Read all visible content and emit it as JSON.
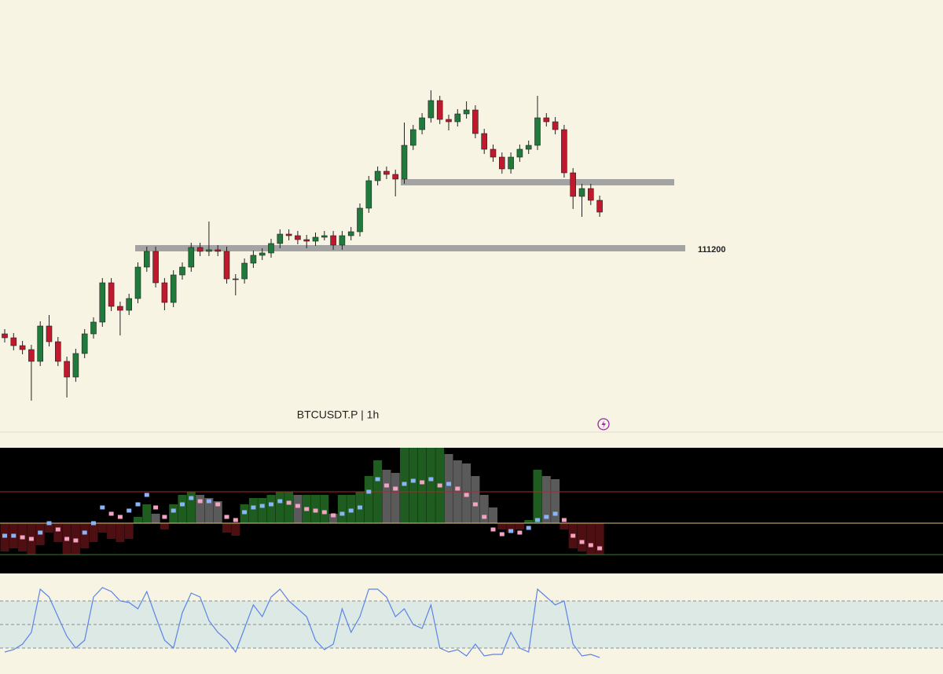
{
  "chart_data": [
    {
      "type": "candlestick",
      "title": "BTCUSDT.P | 1h",
      "ylim": [
        106520,
        117520
      ],
      "up_color": "#1f7a3c",
      "down_color": "#c0182c",
      "levels": [
        {
          "price": 112880,
          "show_label": false
        },
        {
          "price": 111200,
          "show_label": true
        }
      ],
      "level_color": "#a3a3a3",
      "ohlc": [
        [
          109020,
          109140,
          108800,
          108920
        ],
        [
          108920,
          109040,
          108600,
          108720
        ],
        [
          108720,
          108840,
          108500,
          108620
        ],
        [
          108620,
          108740,
          107320,
          108320
        ],
        [
          108320,
          109340,
          108200,
          109220
        ],
        [
          109220,
          109500,
          108700,
          108820
        ],
        [
          108820,
          108940,
          108200,
          108320
        ],
        [
          108320,
          108440,
          107400,
          107920
        ],
        [
          107920,
          108640,
          107800,
          108520
        ],
        [
          108520,
          109140,
          108400,
          109020
        ],
        [
          109020,
          109440,
          108900,
          109320
        ],
        [
          109320,
          110440,
          109200,
          110320
        ],
        [
          110320,
          110440,
          109600,
          109720
        ],
        [
          109720,
          109840,
          108980,
          109620
        ],
        [
          109620,
          110040,
          109500,
          109920
        ],
        [
          109920,
          110840,
          109800,
          110720
        ],
        [
          110720,
          111240,
          110600,
          111120
        ],
        [
          111120,
          111240,
          110200,
          110320
        ],
        [
          110320,
          110440,
          109620,
          109820
        ],
        [
          109820,
          110640,
          109700,
          110520
        ],
        [
          110520,
          110840,
          110400,
          110720
        ],
        [
          110720,
          111340,
          110600,
          111220
        ],
        [
          111220,
          111340,
          111000,
          111120
        ],
        [
          111120,
          111880,
          111000,
          111160
        ],
        [
          111160,
          111280,
          111000,
          111120
        ],
        [
          111120,
          111240,
          110300,
          110420
        ],
        [
          110420,
          110540,
          110000,
          110420
        ],
        [
          110420,
          110940,
          110300,
          110820
        ],
        [
          110820,
          111140,
          110700,
          111020
        ],
        [
          111020,
          111200,
          110900,
          111080
        ],
        [
          111080,
          111440,
          110960,
          111320
        ],
        [
          111320,
          111680,
          111200,
          111560
        ],
        [
          111560,
          111680,
          111400,
          111520
        ],
        [
          111520,
          111640,
          111300,
          111420
        ],
        [
          111420,
          111540,
          111200,
          111380
        ],
        [
          111380,
          111600,
          111260,
          111480
        ],
        [
          111480,
          111640,
          111400,
          111520
        ],
        [
          111520,
          111640,
          111160,
          111280
        ],
        [
          111280,
          111640,
          111160,
          111520
        ],
        [
          111520,
          111740,
          111400,
          111620
        ],
        [
          111620,
          112340,
          111500,
          112220
        ],
        [
          112220,
          113040,
          112100,
          112920
        ],
        [
          112920,
          113280,
          112800,
          113160
        ],
        [
          113160,
          113280,
          112960,
          113080
        ],
        [
          113080,
          113200,
          112520,
          112960
        ],
        [
          112960,
          114400,
          112840,
          113820
        ],
        [
          113820,
          114340,
          113700,
          114220
        ],
        [
          114220,
          114640,
          114100,
          114520
        ],
        [
          114520,
          115220,
          114400,
          114960
        ],
        [
          114960,
          115080,
          114360,
          114480
        ],
        [
          114480,
          114600,
          114200,
          114420
        ],
        [
          114420,
          114740,
          114300,
          114620
        ],
        [
          114620,
          114940,
          114500,
          114720
        ],
        [
          114720,
          114840,
          114000,
          114120
        ],
        [
          114120,
          114240,
          113600,
          113720
        ],
        [
          113720,
          113840,
          113400,
          113520
        ],
        [
          113520,
          113640,
          113100,
          113220
        ],
        [
          113220,
          113640,
          113100,
          113520
        ],
        [
          113520,
          113840,
          113400,
          113720
        ],
        [
          113720,
          113940,
          113600,
          113820
        ],
        [
          113820,
          115080,
          113700,
          114520
        ],
        [
          114520,
          114640,
          114300,
          114420
        ],
        [
          114420,
          114540,
          114100,
          114220
        ],
        [
          114220,
          114340,
          113000,
          113120
        ],
        [
          113120,
          113240,
          112200,
          112520
        ],
        [
          112520,
          112840,
          112000,
          112720
        ],
        [
          112720,
          112840,
          112300,
          112420
        ],
        [
          112420,
          112540,
          112000,
          112120
        ]
      ]
    },
    {
      "type": "histogram",
      "ylim": [
        -1.6,
        2.4
      ],
      "levels": [
        {
          "value": 1,
          "color": "#a52a2a"
        },
        {
          "value": 0,
          "color": "#d9c47c"
        },
        {
          "value": -1,
          "color": "#2e7d32"
        }
      ],
      "rising_color": "#1f5c1f",
      "flat_color": "#5a5a5a",
      "negative_color": "#4d0f12",
      "line_up_color": "#8ab4f8",
      "line_down_color": "#f4a3c4",
      "values": [
        -0.9,
        -0.8,
        -0.9,
        -1.0,
        -0.7,
        -0.3,
        -0.6,
        -1.0,
        -1.0,
        -0.8,
        -0.6,
        -0.3,
        -0.5,
        -0.6,
        -0.5,
        0.2,
        0.6,
        0.3,
        -0.2,
        0.6,
        0.9,
        1.0,
        0.9,
        0.8,
        0.7,
        -0.3,
        -0.4,
        0.6,
        0.8,
        0.8,
        0.9,
        1.0,
        1.0,
        0.9,
        0.9,
        0.9,
        0.9,
        0.3,
        0.9,
        0.9,
        1.0,
        1.5,
        2.0,
        1.7,
        1.6,
        2.4,
        2.4,
        2.4,
        2.4,
        2.4,
        2.2,
        2.0,
        1.9,
        1.5,
        0.9,
        0.5,
        -0.2,
        -0.3,
        -0.2,
        0.1,
        1.7,
        1.5,
        1.4,
        -0.2,
        -0.8,
        -0.9,
        -1.0,
        -1.0
      ],
      "line_values": [
        -0.4,
        -0.4,
        -0.45,
        -0.5,
        -0.3,
        0.0,
        -0.2,
        -0.5,
        -0.55,
        -0.3,
        0.0,
        0.5,
        0.3,
        0.2,
        0.4,
        0.6,
        0.9,
        0.5,
        0.2,
        0.4,
        0.6,
        0.8,
        0.7,
        0.7,
        0.6,
        0.2,
        0.1,
        0.35,
        0.5,
        0.55,
        0.6,
        0.7,
        0.65,
        0.55,
        0.45,
        0.4,
        0.35,
        0.25,
        0.3,
        0.4,
        0.5,
        1.0,
        1.4,
        1.2,
        1.1,
        1.25,
        1.35,
        1.3,
        1.4,
        1.2,
        1.25,
        1.1,
        0.9,
        0.6,
        0.2,
        -0.2,
        -0.35,
        -0.25,
        -0.3,
        -0.15,
        0.1,
        0.2,
        0.3,
        0.1,
        -0.4,
        -0.6,
        -0.7,
        -0.8
      ]
    },
    {
      "type": "line",
      "ylim": [
        0,
        100
      ],
      "levels": [
        80,
        50,
        20
      ],
      "band_color": "#dde9e4",
      "color": "#5b84e6",
      "values": [
        15,
        18,
        25,
        40,
        95,
        85,
        60,
        35,
        20,
        30,
        85,
        97,
        92,
        80,
        78,
        70,
        92,
        60,
        30,
        20,
        65,
        90,
        85,
        55,
        40,
        30,
        15,
        45,
        75,
        60,
        85,
        95,
        80,
        70,
        60,
        30,
        18,
        25,
        70,
        40,
        60,
        95,
        95,
        85,
        60,
        70,
        50,
        45,
        75,
        20,
        15,
        18,
        10,
        25,
        10,
        12,
        12,
        40,
        20,
        15,
        95,
        85,
        75,
        80,
        25,
        10,
        12,
        8
      ]
    }
  ]
}
